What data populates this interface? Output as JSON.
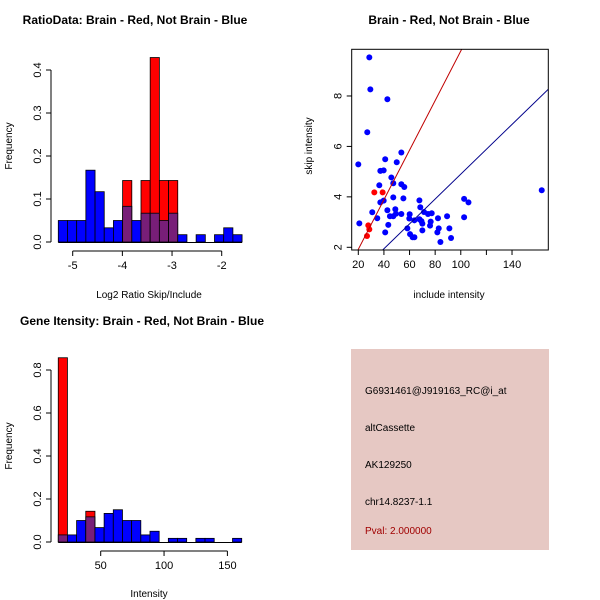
{
  "colors": {
    "red": "#ff0000",
    "blue": "#0000ff",
    "overlap": "#781e78",
    "panel_bg": "#e6c8c3",
    "pval": "#a00000"
  },
  "chart_data": [
    {
      "type": "bar",
      "subtype": "overlaid-histogram",
      "title": "RatioData: Brain - Red, Not Brain - Blue",
      "xlabel": "Log2 Ratio Skip/Include",
      "ylabel": "Frequency",
      "bin_start": -5.29,
      "bin_width": 0.185,
      "series": [
        {
          "name": "Not Brain",
          "color": "blue",
          "values": [
            0.05,
            0.05,
            0.05,
            0.167,
            0.117,
            0.033,
            0.05,
            0.083,
            0.05,
            0.067,
            0.067,
            0.05,
            0.067,
            0.017,
            0,
            0.017,
            0,
            0.017,
            0.033,
            0.017
          ]
        },
        {
          "name": "Brain",
          "color": "red",
          "values": [
            0,
            0,
            0,
            0,
            0,
            0,
            0,
            0.143,
            0,
            0.143,
            0.429,
            0.143,
            0.143,
            0,
            0,
            0,
            0,
            0,
            0,
            0
          ]
        }
      ],
      "xticks": [
        -5,
        -4,
        -3,
        -2
      ],
      "xtick_labels": [
        "-5",
        "-4",
        "-3",
        "-2"
      ],
      "yticks": [
        0,
        0.1,
        0.2,
        0.3,
        0.4
      ],
      "ytick_labels": [
        "0.0",
        "0.1",
        "0.2",
        "0.3",
        "0.4"
      ]
    },
    {
      "type": "scatter",
      "title": "Brain - Red, Not Brain - Blue",
      "xlabel": "include intensity",
      "ylabel": "skip intensity",
      "xlim": [
        15,
        169
      ],
      "ylim": [
        1.9,
        9.85
      ],
      "xticks": [
        20,
        40,
        60,
        80,
        100,
        120,
        140
      ],
      "xtick_labels": [
        "20",
        "40",
        "60",
        "80",
        "100",
        "",
        "140"
      ],
      "yticks": [
        2,
        4,
        6,
        8
      ],
      "ytick_labels": [
        "2",
        "4",
        "6",
        "8"
      ],
      "series": [
        {
          "name": "Not Brain",
          "color": "blue",
          "points": [
            [
              28.6,
              9.53
            ],
            [
              29.4,
              8.26
            ],
            [
              42.7,
              7.87
            ],
            [
              27,
              6.56
            ],
            [
              20,
              5.29
            ],
            [
              53.6,
              5.76
            ],
            [
              41,
              5.49
            ],
            [
              50,
              5.37
            ],
            [
              37.2,
              5.03
            ],
            [
              39.8,
              5.05
            ],
            [
              45.8,
              4.77
            ],
            [
              36.4,
              4.46
            ],
            [
              53.6,
              4.5
            ],
            [
              55.9,
              4.39
            ],
            [
              47.3,
              4.54
            ],
            [
              47.3,
              3.98
            ],
            [
              55.2,
              3.94
            ],
            [
              37.2,
              3.78
            ],
            [
              39.8,
              3.85
            ],
            [
              30.9,
              3.39
            ],
            [
              42.7,
              3.47
            ],
            [
              48.9,
              3.51
            ],
            [
              34.8,
              3.15
            ],
            [
              44.7,
              3.23
            ],
            [
              47.3,
              3.23
            ],
            [
              49.4,
              3.33
            ],
            [
              53.6,
              3.32
            ],
            [
              20.8,
              2.95
            ],
            [
              43.4,
              2.89
            ],
            [
              41,
              2.59
            ],
            [
              60.1,
              3.31
            ],
            [
              59.8,
              3.14
            ],
            [
              63.8,
              3.07
            ],
            [
              58.3,
              2.75
            ],
            [
              60.4,
              2.52
            ],
            [
              62.4,
              2.4
            ],
            [
              63.8,
              2.4
            ],
            [
              67.7,
              3.86
            ],
            [
              68.4,
              3.59
            ],
            [
              71.3,
              3.4
            ],
            [
              74.4,
              3.32
            ],
            [
              77.3,
              3.35
            ],
            [
              67.7,
              3.11
            ],
            [
              69.3,
              3.04
            ],
            [
              70,
              2.94
            ],
            [
              70,
              2.67
            ],
            [
              76.5,
              3.02
            ],
            [
              76,
              2.86
            ],
            [
              82.2,
              3.15
            ],
            [
              82.8,
              2.75
            ],
            [
              81.7,
              2.59
            ],
            [
              84.1,
              2.21
            ],
            [
              89.3,
              3.23
            ],
            [
              91.1,
              2.75
            ],
            [
              92.4,
              2.37
            ],
            [
              102.6,
              3.92
            ],
            [
              106,
              3.78
            ],
            [
              102.6,
              3.19
            ],
            [
              163.2,
              4.26
            ]
          ]
        },
        {
          "name": "Brain",
          "color": "red",
          "points": [
            [
              32.5,
              4.18
            ],
            [
              39,
              4.18
            ],
            [
              27.8,
              2.87
            ],
            [
              28.6,
              2.71
            ],
            [
              26.8,
              2.45
            ]
          ]
        }
      ],
      "lines": [
        {
          "name": "Brain fit",
          "color": "red",
          "intercept": -0.046,
          "slope": 0.0983
        },
        {
          "name": "Not Brain fit",
          "color": "blue",
          "intercept": -0.03,
          "slope": 0.0493
        }
      ]
    },
    {
      "type": "bar",
      "subtype": "overlaid-histogram",
      "title": "Gene Itensity: Brain - Red, Not Brain - Blue",
      "xlabel": "Intensity",
      "ylabel": "Frequency",
      "bin_start": 16.5,
      "bin_width": 7.24,
      "series": [
        {
          "name": "Not Brain",
          "color": "blue",
          "values": [
            0.033,
            0.033,
            0.1,
            0.117,
            0.067,
            0.133,
            0.15,
            0.1,
            0.1,
            0.033,
            0.05,
            0,
            0.017,
            0.017,
            0,
            0.017,
            0.017,
            0,
            0,
            0.017
          ]
        },
        {
          "name": "Brain",
          "color": "red",
          "values": [
            0.857,
            0,
            0,
            0.143,
            0,
            0,
            0,
            0,
            0,
            0,
            0,
            0,
            0,
            0,
            0,
            0,
            0,
            0,
            0,
            0
          ]
        }
      ],
      "xticks": [
        50,
        100,
        150
      ],
      "xtick_labels": [
        "50",
        "100",
        "150"
      ],
      "yticks": [
        0,
        0.2,
        0.4,
        0.6,
        0.8
      ],
      "ytick_labels": [
        "0.0",
        "0.2",
        "0.4",
        "0.6",
        "0.8"
      ]
    }
  ],
  "info_panel": {
    "probe_id": "G6931461@J919163_RC@i_at",
    "event_type": "altCassette",
    "accession": "AK129250",
    "location": "chr14.8237-1.1",
    "pval": "Pval: 2.000000"
  }
}
